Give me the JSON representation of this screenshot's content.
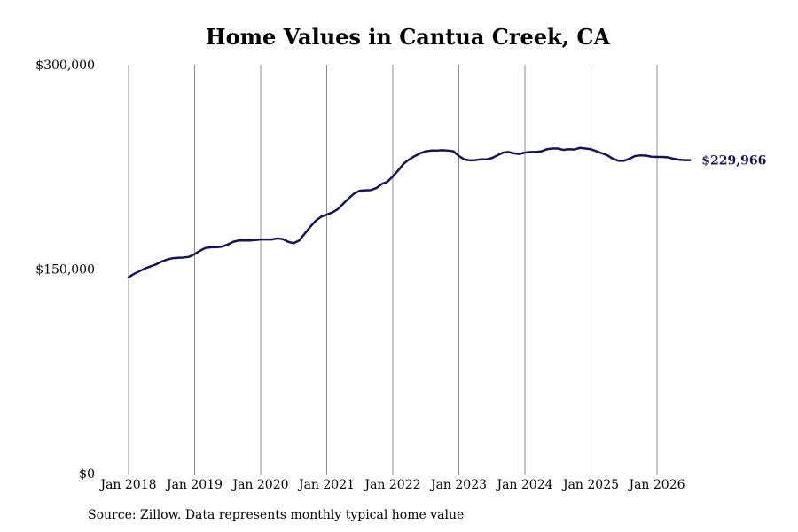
{
  "chart_data": {
    "type": "line",
    "title": "Home Values in Cantua Creek, CA",
    "xlabel": "",
    "ylabel": "",
    "ylim": [
      0,
      300000
    ],
    "y_ticks": [
      0,
      150000,
      300000
    ],
    "y_tick_labels": [
      "$0",
      "$150,000",
      "$300,000"
    ],
    "x_range": [
      "2018-01",
      "2026-07"
    ],
    "x_tick_labels": [
      "Jan 2018",
      "Jan 2019",
      "Jan 2020",
      "Jan 2021",
      "Jan 2022",
      "Jan 2023",
      "Jan 2024",
      "Jan 2025",
      "Jan 2026"
    ],
    "x_ticks": [
      "2018-01",
      "2019-01",
      "2020-01",
      "2021-01",
      "2022-01",
      "2023-01",
      "2024-01",
      "2025-01",
      "2026-01"
    ],
    "grid": "vertical",
    "line_color": "#14145a",
    "end_label": "$229,966",
    "series": [
      {
        "points": [
          [
            "2018-01",
            144000
          ],
          [
            "2018-02",
            146500
          ],
          [
            "2018-03",
            148500
          ],
          [
            "2018-04",
            150500
          ],
          [
            "2018-05",
            152000
          ],
          [
            "2018-06",
            153500
          ],
          [
            "2018-07",
            155500
          ],
          [
            "2018-08",
            157000
          ],
          [
            "2018-09",
            158000
          ],
          [
            "2018-10",
            158300
          ],
          [
            "2018-11",
            158500
          ],
          [
            "2018-12",
            159000
          ],
          [
            "2019-01",
            161000
          ],
          [
            "2019-02",
            163500
          ],
          [
            "2019-03",
            165500
          ],
          [
            "2019-04",
            166000
          ],
          [
            "2019-05",
            166000
          ],
          [
            "2019-06",
            166500
          ],
          [
            "2019-07",
            168000
          ],
          [
            "2019-08",
            170000
          ],
          [
            "2019-09",
            171000
          ],
          [
            "2019-10",
            171000
          ],
          [
            "2019-11",
            171000
          ],
          [
            "2019-12",
            171300
          ],
          [
            "2020-01",
            171700
          ],
          [
            "2020-02",
            171700
          ],
          [
            "2020-03",
            171700
          ],
          [
            "2020-04",
            172500
          ],
          [
            "2020-05",
            172000
          ],
          [
            "2020-06",
            170000
          ],
          [
            "2020-07",
            169000
          ],
          [
            "2020-08",
            171000
          ],
          [
            "2020-09",
            176000
          ],
          [
            "2020-10",
            181000
          ],
          [
            "2020-11",
            185500
          ],
          [
            "2020-12",
            188500
          ],
          [
            "2021-01",
            190000
          ],
          [
            "2021-02",
            191500
          ],
          [
            "2021-03",
            194000
          ],
          [
            "2021-04",
            198000
          ],
          [
            "2021-05",
            202000
          ],
          [
            "2021-06",
            205500
          ],
          [
            "2021-07",
            207500
          ],
          [
            "2021-08",
            207800
          ],
          [
            "2021-09",
            208000
          ],
          [
            "2021-10",
            209500
          ],
          [
            "2021-11",
            212500
          ],
          [
            "2021-12",
            214000
          ],
          [
            "2022-01",
            218000
          ],
          [
            "2022-02",
            222500
          ],
          [
            "2022-03",
            227500
          ],
          [
            "2022-04",
            230500
          ],
          [
            "2022-05",
            233000
          ],
          [
            "2022-06",
            235000
          ],
          [
            "2022-07",
            236500
          ],
          [
            "2022-08",
            237000
          ],
          [
            "2022-09",
            237000
          ],
          [
            "2022-10",
            237300
          ],
          [
            "2022-11",
            237000
          ],
          [
            "2022-12",
            236500
          ],
          [
            "2023-01",
            233000
          ],
          [
            "2023-02",
            230500
          ],
          [
            "2023-03",
            229800
          ],
          [
            "2023-04",
            230000
          ],
          [
            "2023-05",
            230500
          ],
          [
            "2023-06",
            230500
          ],
          [
            "2023-07",
            231500
          ],
          [
            "2023-08",
            233500
          ],
          [
            "2023-09",
            235500
          ],
          [
            "2023-10",
            236000
          ],
          [
            "2023-11",
            235000
          ],
          [
            "2023-12",
            234500
          ],
          [
            "2024-01",
            235500
          ],
          [
            "2024-02",
            236000
          ],
          [
            "2024-03",
            236000
          ],
          [
            "2024-04",
            236500
          ],
          [
            "2024-05",
            238000
          ],
          [
            "2024-06",
            238500
          ],
          [
            "2024-07",
            238500
          ],
          [
            "2024-08",
            237500
          ],
          [
            "2024-09",
            238000
          ],
          [
            "2024-10",
            237800
          ],
          [
            "2024-11",
            239000
          ],
          [
            "2024-12",
            238500
          ],
          [
            "2025-01",
            238000
          ],
          [
            "2025-02",
            236500
          ],
          [
            "2025-03",
            235000
          ],
          [
            "2025-04",
            233500
          ],
          [
            "2025-05",
            231000
          ],
          [
            "2025-06",
            229500
          ],
          [
            "2025-07",
            229500
          ],
          [
            "2025-08",
            231000
          ],
          [
            "2025-09",
            233000
          ],
          [
            "2025-10",
            233500
          ],
          [
            "2025-11",
            233300
          ],
          [
            "2025-12",
            232500
          ],
          [
            "2026-01",
            232300
          ],
          [
            "2026-02",
            232300
          ],
          [
            "2026-03",
            232000
          ],
          [
            "2026-04",
            231000
          ],
          [
            "2026-05",
            230300
          ],
          [
            "2026-06",
            230000
          ],
          [
            "2026-07",
            229966
          ]
        ]
      }
    ]
  },
  "footer": {
    "source": "Source: Zillow. Data represents monthly typical home value"
  }
}
